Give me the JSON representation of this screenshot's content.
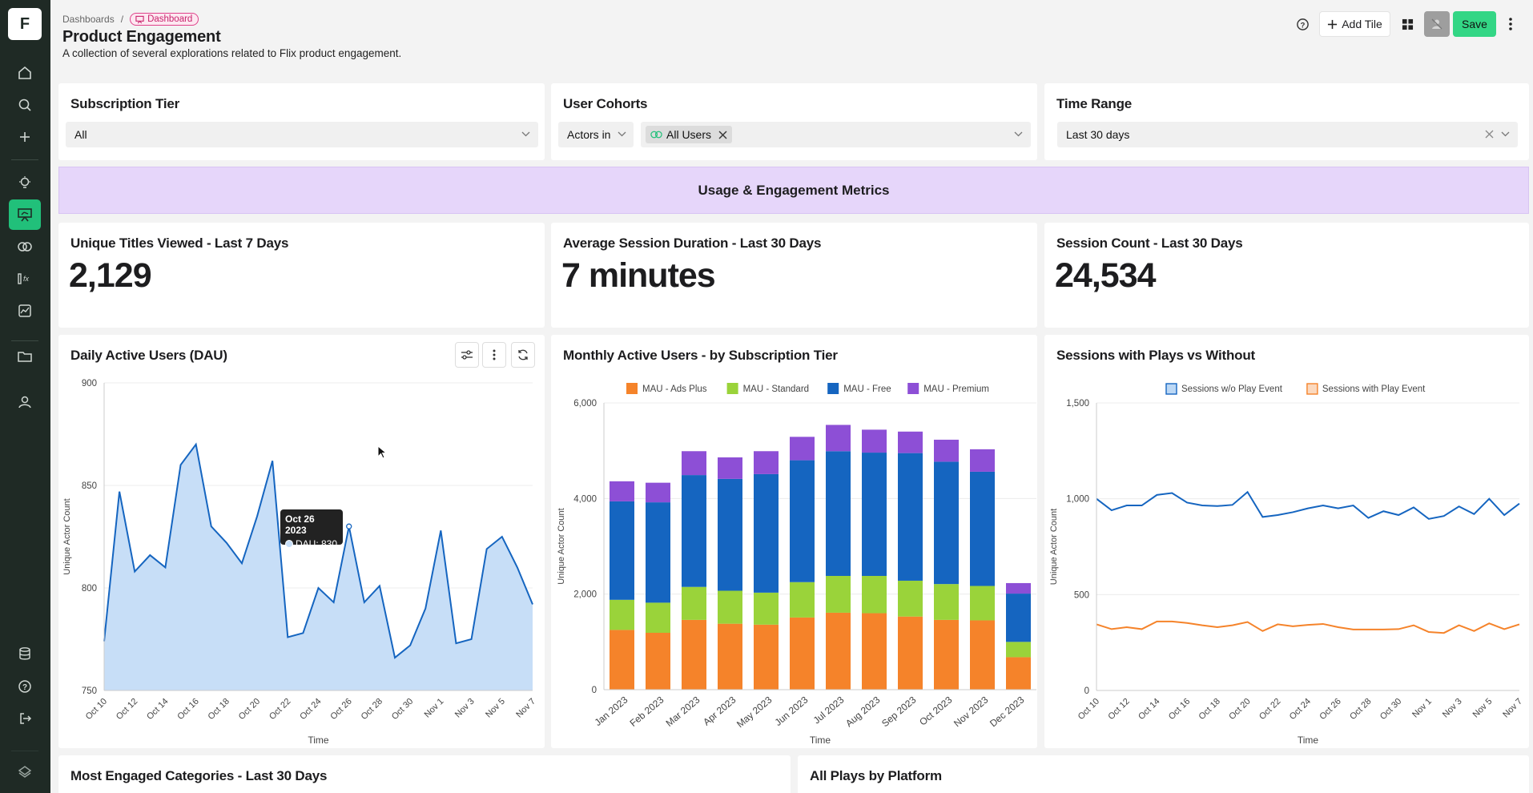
{
  "sidebar": {
    "logo_letter": "F"
  },
  "header": {
    "breadcrumb_parent": "Dashboards",
    "breadcrumb_sep": "/",
    "breadcrumb_current": "Dashboard",
    "title": "Product Engagement",
    "description": "A collection of several explorations related to Flix product engagement."
  },
  "toolbar": {
    "add_tile": "Add Tile",
    "save": "Save"
  },
  "filters": {
    "subscription": {
      "title": "Subscription Tier",
      "value": "All"
    },
    "cohorts": {
      "title": "User Cohorts",
      "mode": "Actors in",
      "tag": "All Users"
    },
    "time": {
      "title": "Time Range",
      "value": "Last 30 days"
    }
  },
  "banner": {
    "title": "Usage & Engagement Metrics"
  },
  "metrics": [
    {
      "title": "Unique Titles Viewed - Last 7 Days",
      "value": "2,129"
    },
    {
      "title": "Average Session Duration - Last 30 Days",
      "value": "7 minutes"
    },
    {
      "title": "Session Count - Last 30 Days",
      "value": "24,534"
    }
  ],
  "bottom": {
    "left_title": "Most Engaged Categories - Last 30 Days",
    "right_title": "All Plays by Platform"
  },
  "tooltip": {
    "date": "Oct 26 2023",
    "label": "DAU: 830"
  },
  "colors": {
    "accent": "#21c07a",
    "sidebar": "#1f2a25",
    "banner": "#e6d6fa",
    "blue": "#1565c0",
    "orange": "#f5832a",
    "green": "#9ad33a",
    "purple": "#8d4fd6",
    "area": "#c7def7"
  },
  "chart_data": [
    {
      "type": "area",
      "title": "Daily Active Users (DAU)",
      "xlabel": "Time",
      "ylabel": "Unique Actor Count",
      "ylim": [
        750,
        900
      ],
      "yticks": [
        750,
        800,
        850,
        900
      ],
      "x_ticks": [
        "Oct 10",
        "Oct 12",
        "Oct 14",
        "Oct 16",
        "Oct 18",
        "Oct 20",
        "Oct 22",
        "Oct 24",
        "Oct 26",
        "Oct 28",
        "Oct 30",
        "Nov 1",
        "Nov 3",
        "Nov 5",
        "Nov 7"
      ],
      "values": [
        774,
        847,
        808,
        816,
        810,
        860,
        870,
        830,
        822,
        812,
        835,
        862,
        776,
        778,
        800,
        793,
        830,
        793,
        801,
        766,
        772,
        790,
        828,
        773,
        775,
        819,
        825,
        810,
        792
      ]
    },
    {
      "type": "bar",
      "stacked": true,
      "title": "Monthly Active Users - by Subscription Tier",
      "xlabel": "",
      "ylabel": "Unique Actor Count",
      "ylim": [
        0,
        6000
      ],
      "yticks": [
        "0",
        "2,000",
        "4,000",
        "6,000"
      ],
      "categories": [
        "Jan 2023",
        "Feb 2023",
        "Mar 2023",
        "Apr 2023",
        "May 2023",
        "Jun 2023",
        "Jul 2023",
        "Aug 2023",
        "Sep 2023",
        "Oct 2023",
        "Nov 2023",
        "Dec 2023"
      ],
      "series": [
        {
          "name": "MAU - Ads Plus",
          "color": "#f5832a",
          "values": [
            1250,
            1190,
            1460,
            1380,
            1360,
            1510,
            1610,
            1600,
            1530,
            1460,
            1450,
            680
          ]
        },
        {
          "name": "MAU - Standard",
          "color": "#9ad33a",
          "values": [
            630,
            630,
            690,
            690,
            670,
            740,
            770,
            780,
            750,
            750,
            720,
            320
          ]
        },
        {
          "name": "MAU - Free",
          "color": "#1565c0",
          "values": [
            2060,
            2100,
            2340,
            2340,
            2480,
            2550,
            2610,
            2580,
            2670,
            2560,
            2390,
            1010
          ]
        },
        {
          "name": "MAU - Premium",
          "color": "#8d4fd6",
          "values": [
            420,
            410,
            500,
            450,
            480,
            490,
            550,
            480,
            450,
            460,
            470,
            220
          ]
        }
      ]
    },
    {
      "type": "line",
      "title": "Sessions with Plays vs Without",
      "xlabel": "Time",
      "ylabel": "Unique Actor Count",
      "ylim": [
        0,
        1500
      ],
      "yticks": [
        "0",
        "500",
        "1,000",
        "1,500"
      ],
      "x_ticks": [
        "Oct 10",
        "Oct 12",
        "Oct 14",
        "Oct 16",
        "Oct 18",
        "Oct 20",
        "Oct 22",
        "Oct 24",
        "Oct 26",
        "Oct 28",
        "Oct 30",
        "Nov 1",
        "Nov 3",
        "Nov 5",
        "Nov 7"
      ],
      "series": [
        {
          "name": "Sessions w/o Play Event",
          "color": "#1565c0",
          "fill": "#bcd8f5",
          "values": [
            1000,
            940,
            965,
            965,
            1020,
            1030,
            980,
            965,
            962,
            968,
            1035,
            905,
            915,
            930,
            950,
            965,
            950,
            965,
            900,
            935,
            915,
            955,
            895,
            910,
            960,
            920,
            1000,
            915,
            975
          ]
        },
        {
          "name": "Sessions with Play Event",
          "color": "#f5832a",
          "fill": "#fbd9bf",
          "values": [
            345,
            320,
            330,
            320,
            360,
            360,
            352,
            340,
            330,
            340,
            357,
            310,
            345,
            335,
            342,
            347,
            330,
            318,
            318,
            318,
            320,
            340,
            305,
            300,
            340,
            310,
            350,
            320,
            345
          ]
        }
      ]
    }
  ]
}
